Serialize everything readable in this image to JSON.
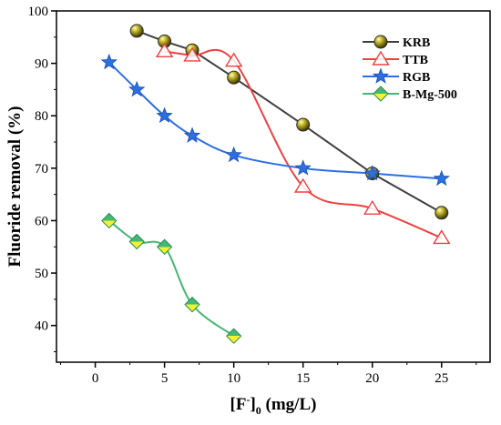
{
  "chart_data": {
    "type": "line",
    "xlabel": {
      "main": "[F",
      "sup": "-",
      "sub": "0",
      "rest": " (mg/L)"
    },
    "ylabel": "Fluoride removal (%)",
    "xlim": [
      -2.8,
      28.5
    ],
    "ylim": [
      33,
      100
    ],
    "xticks": [
      "0",
      "5",
      "10",
      "15",
      "20",
      "25"
    ],
    "yticks": [
      "40",
      "50",
      "60",
      "70",
      "80",
      "90",
      "100"
    ],
    "legend_position": "top-right",
    "series": [
      {
        "name": "KRB",
        "color": "#404040",
        "marker": "sphere",
        "marker_color": "#b5a820",
        "smooth": false,
        "x": [
          3,
          5,
          7,
          10,
          15,
          20,
          25
        ],
        "y": [
          96.2,
          94.2,
          92.5,
          87.3,
          78.3,
          69.0,
          61.5
        ]
      },
      {
        "name": "TTB",
        "color": "#f04040",
        "marker": "open-triangle",
        "marker_color": "#f04040",
        "smooth": true,
        "x": [
          5,
          7,
          10,
          15,
          20,
          25
        ],
        "y": [
          92.3,
          91.5,
          90.5,
          66.5,
          62.3,
          56.7
        ]
      },
      {
        "name": "RGB",
        "color": "#2d6fe0",
        "marker": "star",
        "marker_color": "#2d6fe0",
        "smooth": true,
        "x": [
          1,
          3,
          5,
          7,
          10,
          15,
          20,
          25
        ],
        "y": [
          90.2,
          85.0,
          80.0,
          76.2,
          72.5,
          70.0,
          69.0,
          68.0
        ]
      },
      {
        "name": "B-Mg-500",
        "color": "#44b874",
        "marker": "diamond",
        "marker_color": "#44b874",
        "marker_fill_bottom": "#f2f233",
        "smooth": true,
        "x": [
          1,
          3,
          5,
          7,
          10
        ],
        "y": [
          60.0,
          56.0,
          55.0,
          44.0,
          38.0
        ]
      }
    ]
  }
}
